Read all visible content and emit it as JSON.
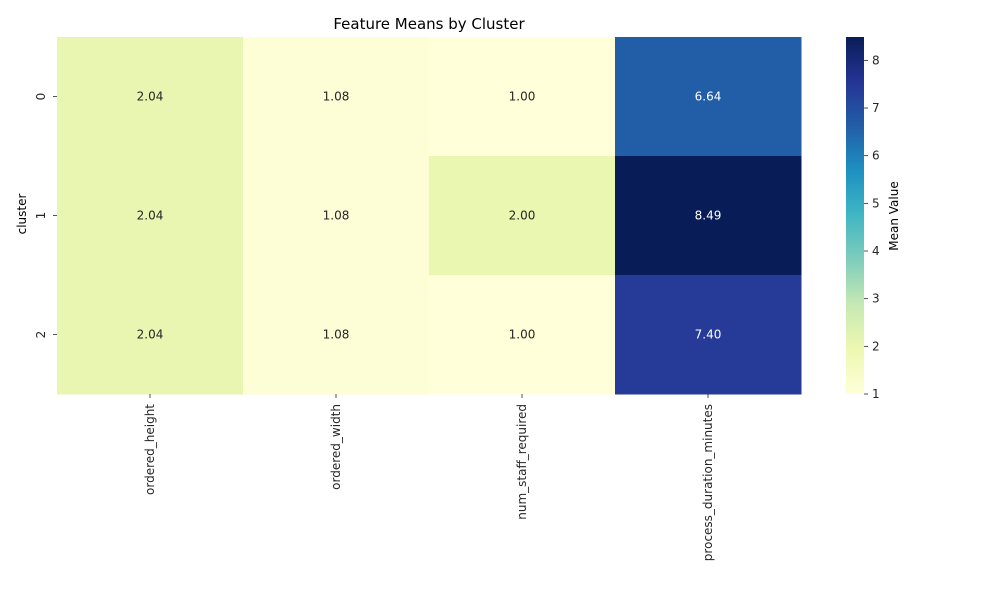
{
  "chart_data": {
    "type": "heatmap",
    "title": "Feature Means by Cluster",
    "xlabel": "",
    "ylabel": "cluster",
    "x_categories": [
      "ordered_height",
      "ordered_width",
      "num_staff_required",
      "process_duration_minutes"
    ],
    "y_categories": [
      "0",
      "1",
      "2"
    ],
    "values": [
      [
        2.04,
        1.08,
        1.0,
        6.64
      ],
      [
        2.04,
        1.08,
        2.0,
        8.49
      ],
      [
        2.04,
        1.08,
        1.0,
        7.4
      ]
    ],
    "value_labels": [
      [
        "2.04",
        "1.08",
        "1.00",
        "6.64"
      ],
      [
        "2.04",
        "1.08",
        "2.00",
        "8.49"
      ],
      [
        "2.04",
        "1.08",
        "1.00",
        "7.40"
      ]
    ],
    "colormap": "YlGnBu",
    "colorbar": {
      "label": "Mean Value",
      "range": [
        1.0,
        8.49
      ],
      "ticks": [
        "1",
        "2",
        "3",
        "4",
        "5",
        "6",
        "7",
        "8"
      ]
    },
    "grid": false
  }
}
